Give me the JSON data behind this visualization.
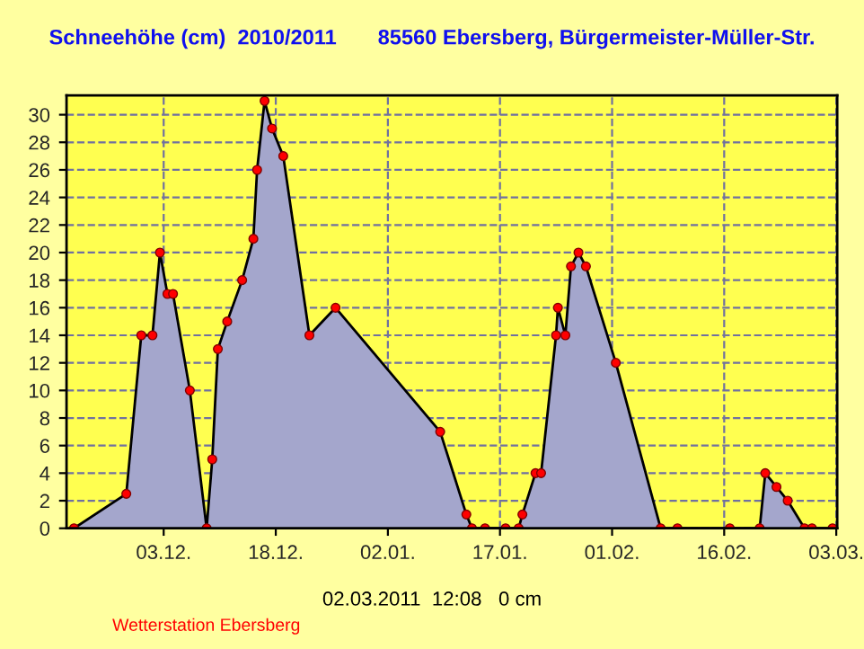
{
  "chart_data": {
    "type": "area",
    "title": "Schneehöhe (cm)  2010/2011       85560 Ebersberg, Bürgermeister-Müller-Str.",
    "x": [
      "2010-11-21",
      "2010-11-28",
      "2010-11-30",
      "2010-12-01T12:00",
      "2010-12-02T12:00",
      "2010-12-03T12:00",
      "2010-12-04T06:00",
      "2010-12-06T12:00",
      "2010-12-08T18:00",
      "2010-12-09T12:00",
      "2010-12-10T06:00",
      "2010-12-11T12:00",
      "2010-12-13T12:00",
      "2010-12-15",
      "2010-12-15T12:00",
      "2010-12-16T12:00",
      "2010-12-17T12:00",
      "2010-12-19",
      "2010-12-22T12:00",
      "2010-12-26",
      "2011-01-09",
      "2011-01-12T12:00",
      "2011-01-13T06:00",
      "2011-01-15",
      "2011-01-17T18:00",
      "2011-01-19T12:00",
      "2011-01-20",
      "2011-01-21T18:00",
      "2011-01-22T12:00",
      "2011-01-24T12:00",
      "2011-01-24T18:00",
      "2011-01-25T18:00",
      "2011-01-26T12:00",
      "2011-01-27T12:00",
      "2011-01-28T12:00",
      "2011-02-01T12:00",
      "2011-02-07T12:00",
      "2011-02-09T18:00",
      "2011-02-16T18:00",
      "2011-02-20T18:00",
      "2011-02-21T12:00",
      "2011-02-23",
      "2011-02-24T12:00",
      "2011-02-26T18:00",
      "2011-02-27T18:00",
      "2011-03-02T12:00"
    ],
    "series": [
      {
        "color": "#a4a6cc",
        "values": [
          0,
          2.5,
          14,
          14,
          20,
          17,
          17,
          10,
          0,
          5,
          13,
          15,
          18,
          21,
          26,
          31,
          29,
          27,
          14,
          16,
          7,
          1,
          0,
          0,
          0,
          0,
          1,
          4,
          4,
          14,
          16,
          14,
          19,
          20,
          19,
          12,
          0,
          0,
          0,
          0,
          4,
          3,
          2,
          0,
          0,
          0
        ]
      }
    ],
    "xlim": [
      "2010-11-20",
      "2011-03-03T03:00"
    ],
    "xticks": [
      {
        "value": "2010-12-03",
        "label": "03.12."
      },
      {
        "value": "2010-12-18",
        "label": "18.12."
      },
      {
        "value": "2011-01-02",
        "label": "02.01."
      },
      {
        "value": "2011-01-17",
        "label": "17.01."
      },
      {
        "value": "2011-02-01",
        "label": "01.02."
      },
      {
        "value": "2011-02-16",
        "label": "16.02."
      },
      {
        "value": "2011-03-03",
        "label": "03.03."
      }
    ],
    "ylim": [
      0,
      31.4
    ],
    "yticks": [
      0,
      2,
      4,
      6,
      8,
      10,
      12,
      14,
      16,
      18,
      20,
      22,
      24,
      26,
      28,
      30
    ],
    "grid": true,
    "marker": "circle",
    "line_style": "solid",
    "annotations": [
      "02.03.2011  12:08   0 cm",
      "Wetterstation Ebersberg"
    ]
  }
}
